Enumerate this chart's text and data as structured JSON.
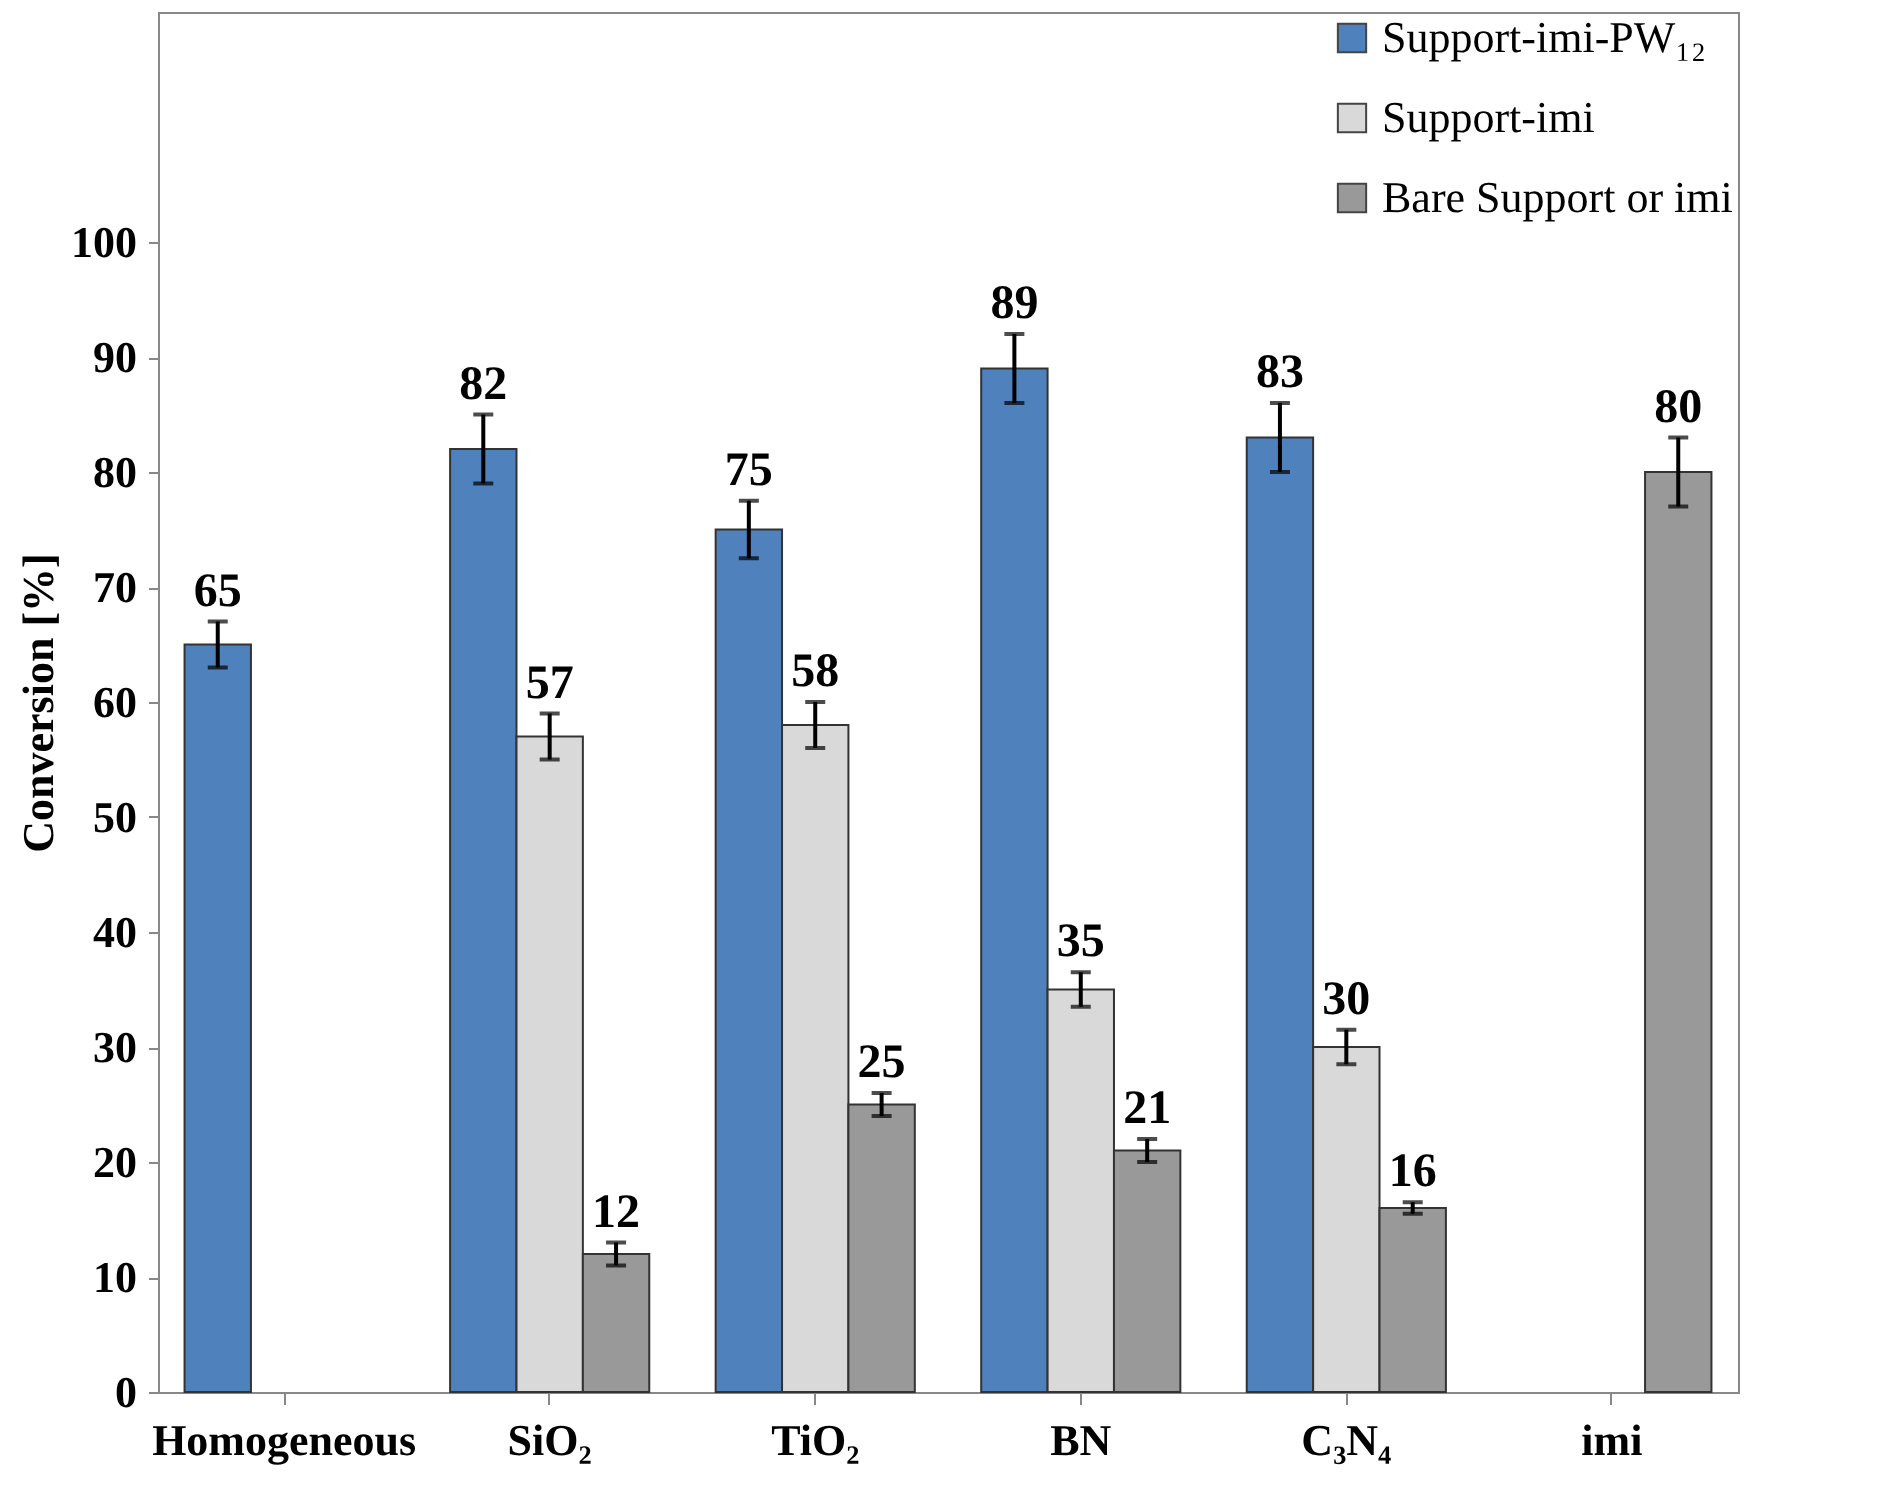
{
  "chart_data": {
    "type": "bar",
    "ylabel": "Conversion [%]",
    "categories": [
      "Homogeneous",
      "SiO₂",
      "TiO₂",
      "BN",
      "C₃N₄",
      "imi"
    ],
    "series": [
      {
        "name": "Support-imi-PW₁₂",
        "color": "#4f81bd",
        "values": [
          65,
          82,
          75,
          89,
          83,
          null
        ],
        "errors": [
          2,
          3,
          2.5,
          3,
          3,
          null
        ]
      },
      {
        "name": "Support-imi",
        "color": "#d9d9d9",
        "values": [
          null,
          57,
          58,
          35,
          30,
          null
        ],
        "errors": [
          null,
          2,
          2,
          1.5,
          1.5,
          null
        ]
      },
      {
        "name": "Bare Support or imi",
        "color": "#999999",
        "values": [
          null,
          12,
          25,
          21,
          16,
          80
        ],
        "errors": [
          null,
          1,
          1,
          1,
          0.5,
          3
        ]
      }
    ],
    "ylim": [
      0,
      120
    ],
    "yticks": [
      0,
      10,
      20,
      30,
      40,
      50,
      60,
      70,
      80,
      90,
      100
    ],
    "grid": false,
    "legend": "top right",
    "data_labels": true
  }
}
